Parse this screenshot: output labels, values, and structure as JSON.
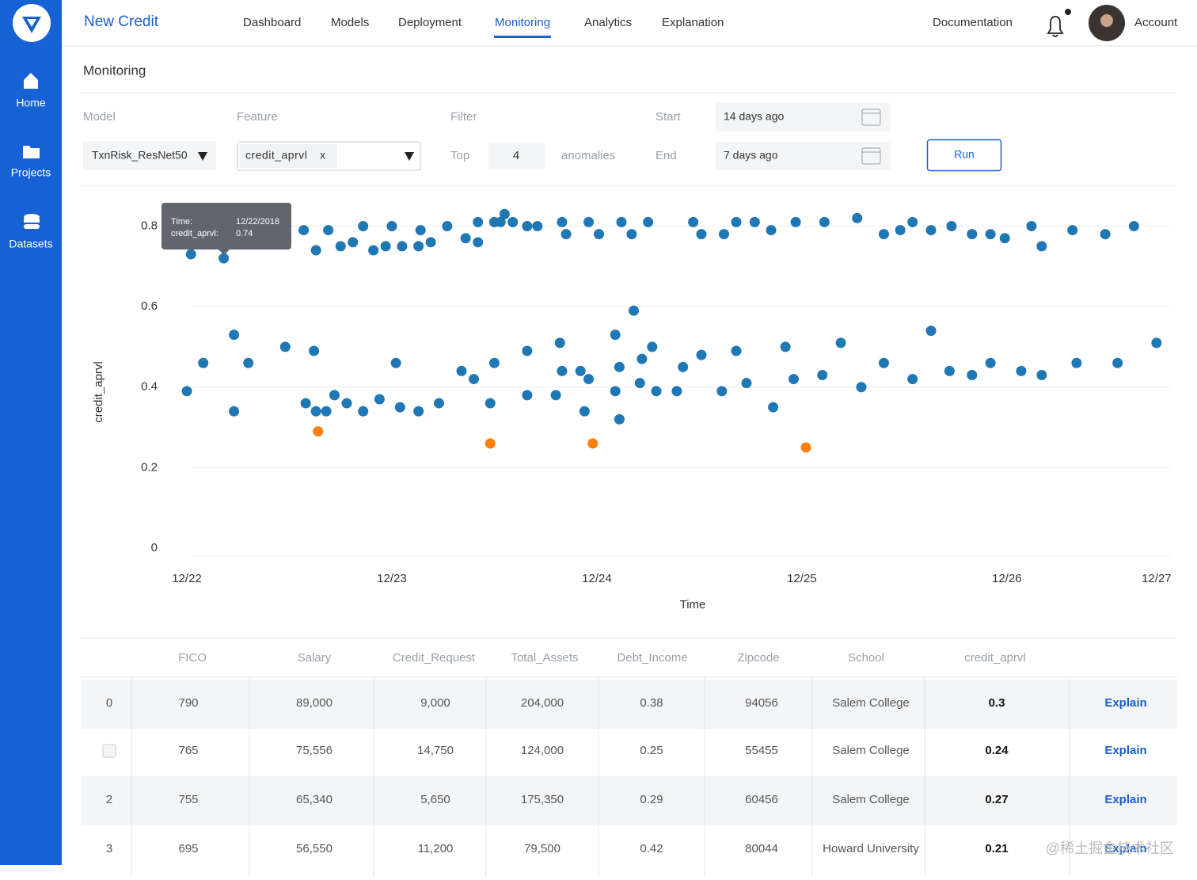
{
  "sidebar": {
    "items": [
      "Home",
      "Projects",
      "Datasets"
    ]
  },
  "header": {
    "title": "New Credit",
    "nav": [
      "Dashboard",
      "Models",
      "Deployment",
      "Monitoring",
      "Analytics",
      "Explanation"
    ],
    "active": 3,
    "documentation": "Documentation",
    "account": "Account"
  },
  "page_title": "Monitoring",
  "controls": {
    "model_label": "Model",
    "model_value": "TxnRisk_ResNet50",
    "feature_label": "Feature",
    "feature_value": "credit_aprvl",
    "feature_remove": "x",
    "filter_label": "Filter",
    "top_label": "Top",
    "top_value": 4,
    "anomalies_label": "anomalies",
    "start_label": "Start",
    "start_value": "14 days ago",
    "end_label": "End",
    "end_value": "7 days ago",
    "run": "Run"
  },
  "chart_data": {
    "type": "scatter",
    "x_label": "Time",
    "y_label": "credit_aprvl",
    "xlim": [
      0,
      4.8
    ],
    "xticks": [
      {
        "value": 0,
        "label": "12/22"
      },
      {
        "value": 1,
        "label": "12/23"
      },
      {
        "value": 2,
        "label": "12/24"
      },
      {
        "value": 3,
        "label": "12/25"
      },
      {
        "value": 4,
        "label": "12/26"
      },
      {
        "value": 4.73,
        "label": "12/27"
      }
    ],
    "ylim": [
      0,
      0.86
    ],
    "yticks": [
      0,
      0.2,
      0.4,
      0.6,
      0.8
    ],
    "grid": true,
    "series": [
      {
        "color": "#1f77b4",
        "x": [
          0.02,
          0.18,
          0.57,
          0.63,
          0.69,
          0.75,
          0.81,
          0.86,
          0.91,
          0.97,
          1.0,
          1.05,
          1.13,
          1.14,
          1.19,
          1.27,
          1.36,
          1.42,
          1.42,
          1.5,
          1.53,
          1.55,
          1.59,
          1.66,
          1.71,
          1.83,
          1.85,
          1.96,
          2.01,
          2.12,
          2.17,
          2.25,
          2.47,
          2.51,
          2.62,
          2.68,
          2.77,
          2.85,
          2.97,
          3.11,
          3.27,
          3.4,
          3.48,
          3.54,
          3.63,
          3.73,
          3.83,
          3.92,
          3.99,
          4.12,
          4.17,
          4.32,
          4.48,
          4.62,
          0.0,
          0.08,
          0.23,
          0.23,
          0.3,
          0.48,
          0.58,
          0.62,
          0.63,
          0.68,
          0.72,
          0.78,
          0.86,
          0.94,
          1.02,
          1.04,
          1.13,
          1.23,
          1.34,
          1.4,
          1.48,
          1.5,
          1.66,
          1.66,
          1.8,
          1.82,
          1.83,
          1.92,
          1.94,
          1.96,
          2.09,
          2.09,
          2.11,
          2.11,
          2.18,
          2.21,
          2.22,
          2.27,
          2.29,
          2.39,
          2.42,
          2.51,
          2.61,
          2.68,
          2.73,
          2.86,
          2.92,
          2.96,
          3.1,
          3.19,
          3.29,
          3.4,
          3.54,
          3.63,
          3.72,
          3.83,
          3.92,
          4.07,
          4.17,
          4.34,
          4.54,
          4.73
        ],
        "values": [
          0.73,
          0.72,
          0.79,
          0.74,
          0.79,
          0.75,
          0.76,
          0.8,
          0.74,
          0.75,
          0.8,
          0.75,
          0.75,
          0.79,
          0.76,
          0.8,
          0.77,
          0.81,
          0.76,
          0.81,
          0.81,
          0.83,
          0.81,
          0.8,
          0.8,
          0.81,
          0.78,
          0.81,
          0.78,
          0.81,
          0.78,
          0.81,
          0.81,
          0.78,
          0.78,
          0.81,
          0.81,
          0.79,
          0.81,
          0.81,
          0.82,
          0.78,
          0.79,
          0.81,
          0.79,
          0.8,
          0.78,
          0.78,
          0.77,
          0.8,
          0.75,
          0.79,
          0.78,
          0.8,
          0.39,
          0.46,
          0.53,
          0.34,
          0.46,
          0.5,
          0.36,
          0.49,
          0.34,
          0.34,
          0.38,
          0.36,
          0.34,
          0.37,
          0.46,
          0.35,
          0.34,
          0.36,
          0.44,
          0.42,
          0.36,
          0.46,
          0.49,
          0.38,
          0.38,
          0.51,
          0.44,
          0.44,
          0.34,
          0.42,
          0.53,
          0.39,
          0.45,
          0.32,
          0.59,
          0.41,
          0.47,
          0.5,
          0.39,
          0.39,
          0.45,
          0.48,
          0.39,
          0.49,
          0.41,
          0.35,
          0.5,
          0.42,
          0.43,
          0.51,
          0.4,
          0.46,
          0.42,
          0.54,
          0.44,
          0.43,
          0.46,
          0.44,
          0.43,
          0.46,
          0.46,
          0.51
        ]
      },
      {
        "color": "#ff7f0e",
        "x": [
          0.64,
          1.48,
          1.98,
          3.02
        ],
        "values": [
          0.29,
          0.26,
          0.26,
          0.25
        ]
      }
    ],
    "tooltip": {
      "time_label": "Time:",
      "time": "12/22/2018",
      "value_label": "credit_aprvl:",
      "value": 0.74
    }
  },
  "table": {
    "headers": [
      "FICO",
      "Salary",
      "Credit_Request",
      "Total_Assets",
      "Debt_Income",
      "Zipcode",
      "School",
      "credit_aprvl"
    ],
    "rows": [
      {
        "index": "0",
        "cells": [
          "790",
          "89,000",
          "9,000",
          "204,000",
          "0.38",
          "94056",
          "Salem College",
          "0.3"
        ],
        "action": "Explain"
      },
      {
        "cells": [
          "765",
          "75,556",
          "14,750",
          "124,000",
          "0.25",
          "55455",
          "Salem College",
          "0.24"
        ],
        "action": "Explain"
      },
      {
        "index": "2",
        "cells": [
          "755",
          "65,340",
          "5,650",
          "175,350",
          "0.29",
          "60456",
          "Salem College",
          "0.27"
        ],
        "action": "Explain"
      },
      {
        "index": "3",
        "cells": [
          "695",
          "56,550",
          "11,200",
          "79,500",
          "0.42",
          "80044",
          "Howard University",
          "0.21"
        ],
        "action": "Explain"
      }
    ]
  },
  "watermark": "@稀土掘金技术社区"
}
